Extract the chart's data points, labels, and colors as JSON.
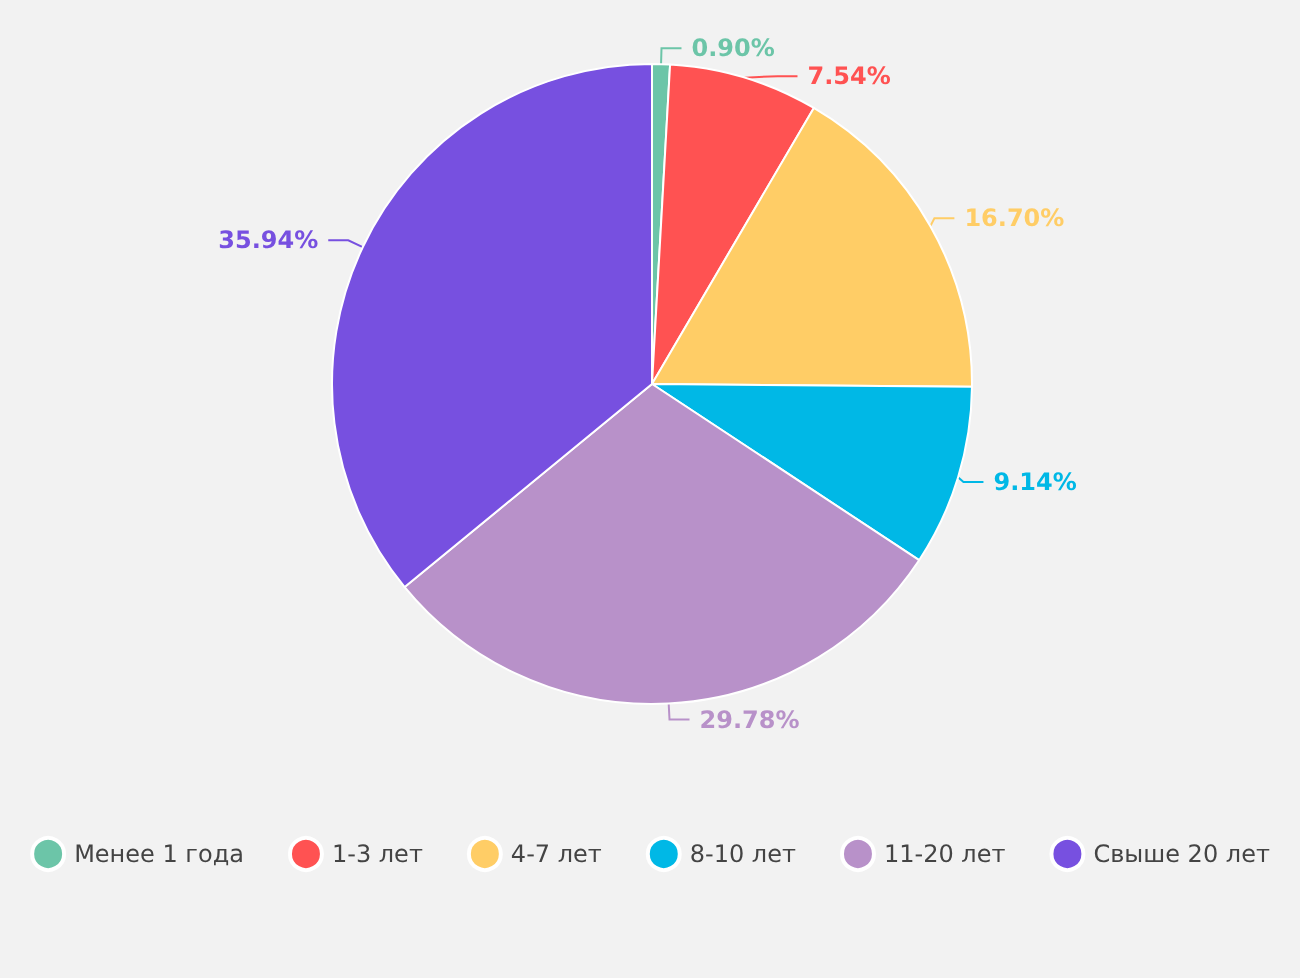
{
  "chart_data": {
    "type": "pie",
    "categories": [
      "Менее 1 года",
      "1-3 лет",
      "4-7 лет",
      "8-10 лет",
      "11-20 лет",
      "Свыше 20 лет"
    ],
    "values": [
      0.9,
      7.54,
      16.7,
      9.14,
      29.78,
      35.94
    ],
    "colors": [
      "#6cc5a8",
      "#ff5252",
      "#ffcd66",
      "#00b8e6",
      "#b891c9",
      "#7750e0"
    ],
    "value_labels": [
      "0.90%",
      "7.54%",
      "16.70%",
      "9.14%",
      "29.78%",
      "35.94%"
    ],
    "legend": "bottom"
  }
}
